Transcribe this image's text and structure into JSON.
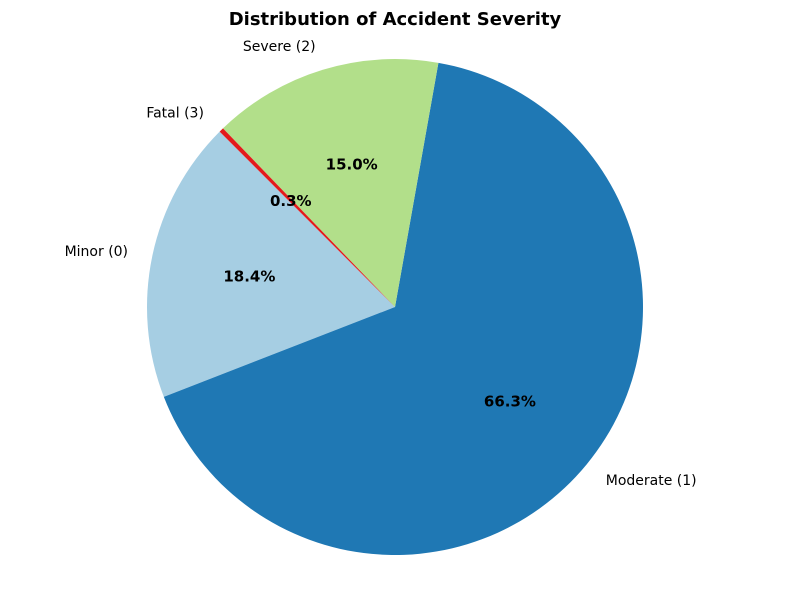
{
  "chart_data": {
    "type": "pie",
    "title": "Distribution of Accident Severity",
    "start_angle_deg": 135,
    "direction": "counterclockwise",
    "slices": [
      {
        "label": "Minor (0)",
        "percent": 18.4,
        "percent_label": "18.4%",
        "color": "#a6cee3"
      },
      {
        "label": "Moderate (1)",
        "percent": 66.3,
        "percent_label": "66.3%",
        "color": "#1f78b4"
      },
      {
        "label": "Severe (2)",
        "percent": 15.0,
        "percent_label": "15.0%",
        "color": "#b2df8a"
      },
      {
        "label": "Fatal (3)",
        "percent": 0.3,
        "percent_label": "0.3%",
        "color": "#e31a1c"
      }
    ]
  }
}
